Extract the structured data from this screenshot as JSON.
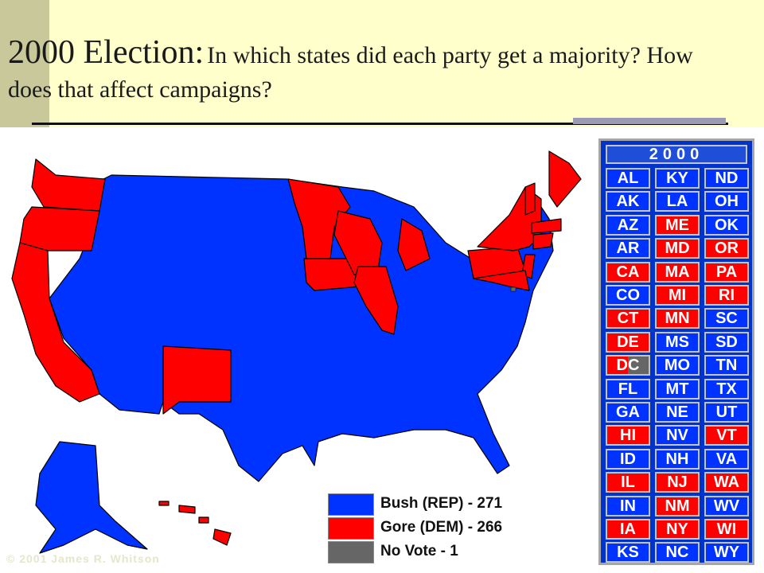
{
  "title": {
    "main": "2000 Election",
    "colon": ":",
    "sub": "In which states did each party get a majority?  How does that affect campaigns?"
  },
  "colors": {
    "republican": "#0033ff",
    "democrat": "#ff0000",
    "no_vote": "#666666",
    "panel_bg": "#0033cc",
    "header_bg": "#ffffcc"
  },
  "legend": [
    {
      "label": "Bush (REP) - 271",
      "color": "#0033ff"
    },
    {
      "label": "Gore (DEM) - 266",
      "color": "#ff0000"
    },
    {
      "label": "No Vote - 1",
      "color": "#666666"
    }
  ],
  "panel": {
    "year": "2000",
    "states": [
      [
        "AL",
        "R"
      ],
      [
        "KY",
        "R"
      ],
      [
        "ND",
        "R"
      ],
      [
        "AK",
        "R"
      ],
      [
        "LA",
        "R"
      ],
      [
        "OH",
        "R"
      ],
      [
        "AZ",
        "R"
      ],
      [
        "ME",
        "D"
      ],
      [
        "OK",
        "R"
      ],
      [
        "AR",
        "R"
      ],
      [
        "MD",
        "D"
      ],
      [
        "OR",
        "D"
      ],
      [
        "CA",
        "D"
      ],
      [
        "MA",
        "D"
      ],
      [
        "PA",
        "D"
      ],
      [
        "CO",
        "R"
      ],
      [
        "MI",
        "D"
      ],
      [
        "RI",
        "D"
      ],
      [
        "CT",
        "D"
      ],
      [
        "MN",
        "D"
      ],
      [
        "SC",
        "R"
      ],
      [
        "DE",
        "D"
      ],
      [
        "MS",
        "R"
      ],
      [
        "SD",
        "R"
      ],
      [
        "DC",
        "X"
      ],
      [
        "MO",
        "R"
      ],
      [
        "TN",
        "R"
      ],
      [
        "FL",
        "R"
      ],
      [
        "MT",
        "R"
      ],
      [
        "TX",
        "R"
      ],
      [
        "GA",
        "R"
      ],
      [
        "NE",
        "R"
      ],
      [
        "UT",
        "R"
      ],
      [
        "HI",
        "D"
      ],
      [
        "NV",
        "R"
      ],
      [
        "VT",
        "D"
      ],
      [
        "ID",
        "R"
      ],
      [
        "NH",
        "R"
      ],
      [
        "VA",
        "R"
      ],
      [
        "IL",
        "D"
      ],
      [
        "NJ",
        "D"
      ],
      [
        "WA",
        "D"
      ],
      [
        "IN",
        "R"
      ],
      [
        "NM",
        "D"
      ],
      [
        "WV",
        "R"
      ],
      [
        "IA",
        "D"
      ],
      [
        "NY",
        "D"
      ],
      [
        "WI",
        "D"
      ],
      [
        "KS",
        "R"
      ],
      [
        "NC",
        "R"
      ],
      [
        "WY",
        "R"
      ]
    ]
  },
  "copyright": "© 2001 James R. Whitson"
}
